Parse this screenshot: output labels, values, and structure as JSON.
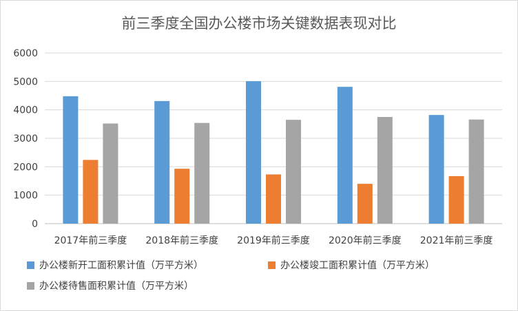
{
  "chart_data": {
    "type": "bar",
    "title": "前三季度全国办公楼市场关键数据表现对比",
    "categories": [
      "2017年前三季度",
      "2018年前三季度",
      "2019年前三季度",
      "2020年前三季度",
      "2021年前三季度"
    ],
    "series": [
      {
        "name": "办公楼新开工面积累计值（万平方米）",
        "color": "#5B9BD5",
        "values": [
          4480,
          4310,
          5010,
          4810,
          3820
        ]
      },
      {
        "name": "办公楼竣工面积累计值（万平方米）",
        "color": "#ED7D31",
        "values": [
          2240,
          1930,
          1730,
          1400,
          1670
        ]
      },
      {
        "name": "办公楼待售面积累计值（万平方米）",
        "color": "#A5A5A5",
        "values": [
          3520,
          3540,
          3650,
          3750,
          3660
        ]
      }
    ],
    "yticks": [
      "0",
      "1000",
      "2000",
      "3000",
      "4000",
      "5000",
      "6000"
    ],
    "ylim": [
      0,
      6000
    ],
    "grid": true,
    "legend_position": "bottom"
  }
}
